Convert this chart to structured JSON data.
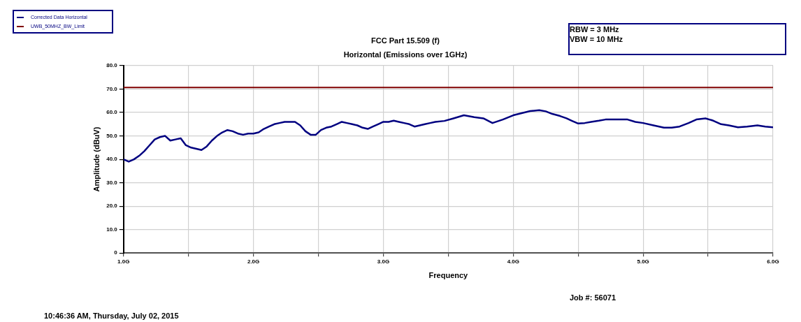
{
  "chart_data": {
    "type": "line",
    "title": "FCC Part 15.509 (f)",
    "subtitle": "Horizontal (Emissions over 1GHz)",
    "xlabel": "Frequency",
    "ylabel": "Amplitude (dBuV)",
    "annotations": [
      "RBW = 3 MHz\nVBW = 10 MHz",
      "Job #: 56071",
      "10:46:36 AM, Thursday, July 02, 2015"
    ],
    "xlim": [
      1,
      6
    ],
    "xticks": [
      {
        "value": 1,
        "label": "1.0G"
      },
      {
        "value": 1.5,
        "label": null
      },
      {
        "value": 2,
        "label": "2.0G"
      },
      {
        "value": 2.5,
        "label": null
      },
      {
        "value": 3,
        "label": "3.0G"
      },
      {
        "value": 3.5,
        "label": null
      },
      {
        "value": 4,
        "label": "4.0G"
      },
      {
        "value": 4.5,
        "label": null
      },
      {
        "value": 5,
        "label": "5.0G"
      },
      {
        "value": 5.5,
        "label": null
      },
      {
        "value": 6,
        "label": "6.0G"
      }
    ],
    "ylim": [
      0,
      80
    ],
    "yticks": [
      0,
      {
        "value": 10,
        "label": "10.0"
      },
      {
        "value": 20,
        "label": "20.0"
      },
      {
        "value": 30,
        "label": "30.0"
      },
      {
        "value": 40,
        "label": "40.0"
      },
      {
        "value": 50,
        "label": "50.0"
      },
      {
        "value": 60,
        "label": "60.0"
      },
      {
        "value": 70,
        "label": "70.0"
      },
      {
        "value": 80,
        "label": "80.0"
      }
    ],
    "grid": true,
    "legend": "top left",
    "marker": "none",
    "line_style": "solid",
    "series": [
      {
        "name": "Corrected Data Horizontal",
        "color": "#000080",
        "x": [
          1.0,
          1.04,
          1.08,
          1.12,
          1.16,
          1.2,
          1.24,
          1.28,
          1.32,
          1.36,
          1.4,
          1.44,
          1.48,
          1.52,
          1.56,
          1.6,
          1.64,
          1.68,
          1.72,
          1.76,
          1.8,
          1.84,
          1.88,
          1.92,
          1.96,
          2.0,
          2.04,
          2.08,
          2.12,
          2.16,
          2.2,
          2.24,
          2.28,
          2.32,
          2.36,
          2.4,
          2.44,
          2.48,
          2.52,
          2.56,
          2.6,
          2.64,
          2.68,
          2.72,
          2.76,
          2.8,
          2.84,
          2.88,
          2.92,
          2.96,
          3.0,
          3.04,
          3.08,
          3.12,
          3.16,
          3.2,
          3.24,
          3.28,
          3.32,
          3.36,
          3.4,
          3.47,
          3.54,
          3.62,
          3.7,
          3.77,
          3.84,
          3.92,
          4.0,
          4.07,
          4.13,
          4.2,
          4.25,
          4.3,
          4.36,
          4.41,
          4.45,
          4.5,
          4.55,
          4.6,
          4.66,
          4.71,
          4.8,
          4.88,
          4.94,
          5.0,
          5.08,
          5.16,
          5.22,
          5.28,
          5.35,
          5.41,
          5.48,
          5.54,
          5.6,
          5.66,
          5.73,
          5.8,
          5.88,
          5.94,
          6.0
        ],
        "values": [
          40,
          39,
          40,
          41.5,
          43.5,
          46,
          48.5,
          49.5,
          50,
          48,
          48.5,
          49,
          46,
          45,
          44.5,
          44,
          45.5,
          48,
          50,
          51.5,
          52.5,
          52,
          51,
          50.5,
          51,
          51,
          51.5,
          53,
          54,
          55,
          55.5,
          56,
          56,
          56,
          54.5,
          52,
          50.5,
          50.5,
          52.5,
          53.5,
          54,
          55,
          56,
          55.5,
          55,
          54.5,
          53.5,
          53,
          54,
          55,
          56,
          56,
          56.5,
          56,
          55.5,
          55,
          54,
          54.5,
          55,
          55.5,
          56,
          56.4,
          57.5,
          58.8,
          58,
          57.5,
          55.5,
          57,
          58.8,
          59.8,
          60.6,
          61,
          60.5,
          59.4,
          58.5,
          57.5,
          56.5,
          55.3,
          55.5,
          56,
          56.5,
          57,
          57,
          57,
          56,
          55.5,
          54.5,
          53.5,
          53.5,
          54,
          55.5,
          57,
          57.5,
          56.5,
          55,
          54.5,
          53.7,
          54,
          54.5,
          54,
          53.7
        ]
      },
      {
        "name": "UWB_50MHZ_BW_Limit",
        "color": "#800000",
        "x": [
          1,
          6
        ],
        "values": [
          70.7,
          70.7
        ]
      }
    ]
  }
}
